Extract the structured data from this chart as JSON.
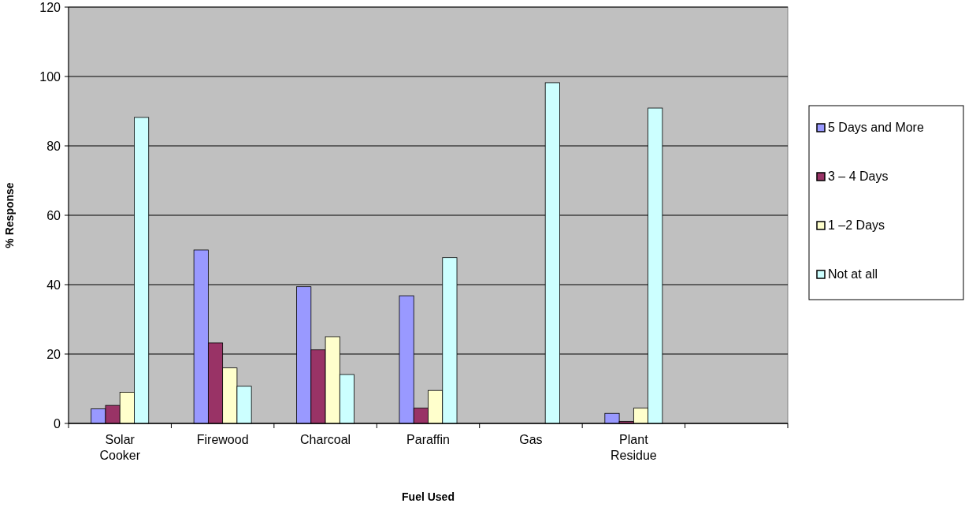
{
  "chart_data": {
    "type": "bar",
    "xlabel": "Fuel Used",
    "ylabel": "% Response",
    "categories": [
      "Solar Cooker",
      "Firewood",
      "Charcoal",
      "Paraffin",
      "Gas",
      "Plant Residue",
      null
    ],
    "series": [
      {
        "name": "5 Days and More",
        "color": "#9999ff",
        "values": [
          4.2,
          50,
          39.4,
          36.8,
          null,
          2.9,
          null
        ]
      },
      {
        "name": "3 – 4 Days",
        "color": "#993366",
        "values": [
          5.2,
          23.2,
          21.2,
          4.4,
          null,
          0.6,
          null
        ]
      },
      {
        "name": "1 –2 Days",
        "color": "#ffffcc",
        "values": [
          9,
          16,
          25,
          9.5,
          null,
          4.4,
          null
        ]
      },
      {
        "name": "Not at all",
        "color": "#ccffff",
        "values": [
          88.2,
          10.7,
          14.1,
          47.8,
          98.2,
          90.9,
          null
        ]
      }
    ],
    "ylim": [
      0,
      120
    ],
    "yticks": [
      0,
      20,
      40,
      60,
      80,
      100,
      120
    ],
    "grid": "y",
    "legend": "right"
  }
}
